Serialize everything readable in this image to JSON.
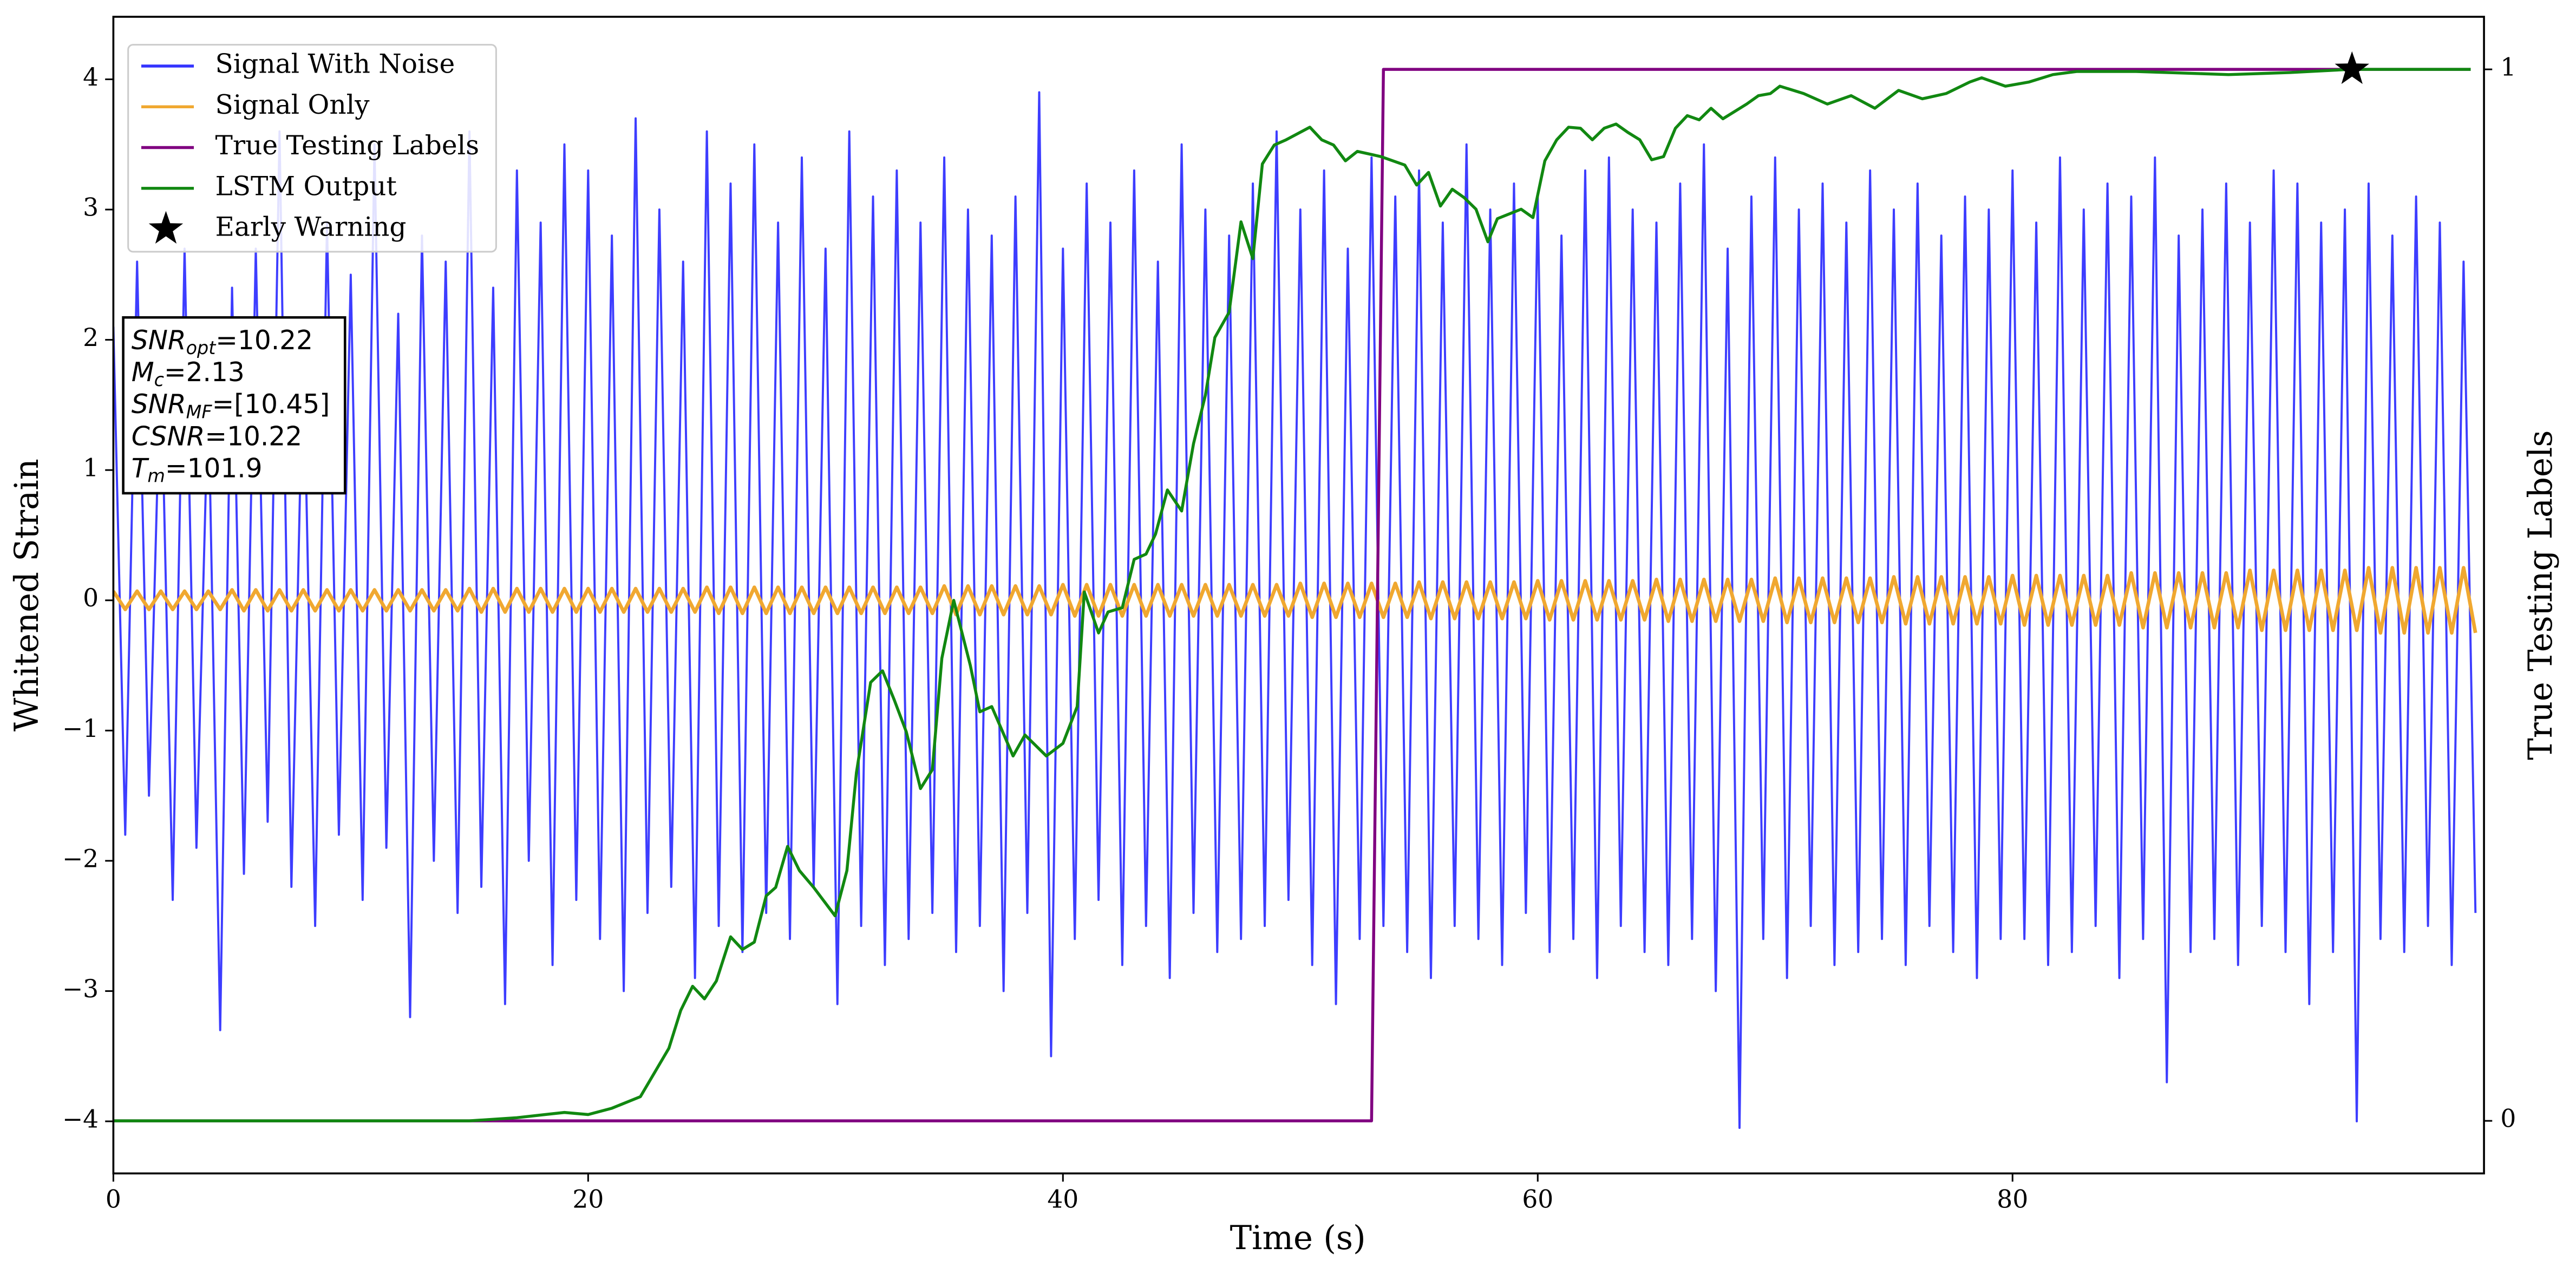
{
  "chart_data": {
    "type": "line",
    "xlabel": "Time (s)",
    "ylabel": "Whitened Strain",
    "y2label": "True Testing Labels",
    "xlim": [
      0,
      99.86
    ],
    "ylim": [
      -4.4,
      4.48
    ],
    "y2lim": [
      -0.05,
      1.05
    ],
    "xticks": [
      0,
      20,
      40,
      60,
      80
    ],
    "yticks": [
      {
        "value": -4,
        "label": "−4"
      },
      {
        "value": -3,
        "label": "−3"
      },
      {
        "value": -2,
        "label": "−2"
      },
      {
        "value": -1,
        "label": "−1"
      },
      0,
      1,
      2,
      3,
      4
    ],
    "y2ticks": [
      0,
      1
    ],
    "legend": "upper left",
    "x": [
      0,
      0.5,
      1,
      1.5,
      2,
      2.5,
      3,
      3.5,
      4,
      4.5,
      5,
      5.5,
      6,
      6.5,
      7,
      7.5,
      8,
      8.5,
      9,
      9.5,
      10,
      10.5,
      11,
      11.5,
      12,
      12.5,
      13,
      13.5,
      14,
      14.5,
      15,
      15.5,
      16,
      16.5,
      17,
      17.5,
      18,
      18.5,
      19,
      19.5,
      20,
      20.5,
      21,
      21.5,
      22,
      22.5,
      23,
      23.5,
      24,
      24.5,
      25,
      25.5,
      26,
      26.5,
      27,
      27.5,
      28,
      28.5,
      29,
      29.5,
      30,
      30.5,
      31,
      31.5,
      32,
      32.5,
      33,
      33.5,
      34,
      34.5,
      35,
      35.5,
      36,
      36.5,
      37,
      37.5,
      38,
      38.5,
      39,
      39.5,
      40,
      40.5,
      41,
      41.5,
      42,
      42.5,
      43,
      43.5,
      44,
      44.5,
      45,
      45.5,
      46,
      46.5,
      47,
      47.5,
      48,
      48.5,
      49,
      49.5,
      50,
      50.5,
      51,
      51.5,
      52,
      52.5,
      53,
      53.5,
      54,
      54.5,
      55,
      55.5,
      56,
      56.5,
      57,
      57.5,
      58,
      58.5,
      59,
      59.5,
      60,
      60.5,
      61,
      61.5,
      62,
      62.5,
      63,
      63.5,
      64,
      64.5,
      65,
      65.5,
      66,
      66.5,
      67,
      67.5,
      68,
      68.5,
      69,
      69.5,
      70,
      70.5,
      71,
      71.5,
      72,
      72.5,
      73,
      73.5,
      74,
      74.5,
      75,
      75.5,
      76,
      76.5,
      77,
      77.5,
      78,
      78.5,
      79,
      79.5,
      80,
      80.5,
      81,
      81.5,
      82,
      82.5,
      83,
      83.5,
      84,
      84.5,
      85,
      85.5,
      86,
      86.5,
      87,
      87.5,
      88,
      88.5,
      89,
      89.5,
      90,
      90.5,
      91,
      91.5,
      92,
      92.5,
      93,
      93.5,
      94,
      94.5,
      95,
      95.5,
      96,
      96.5,
      97,
      97.5,
      98,
      98.5,
      99,
      99.5
    ],
    "series": [
      {
        "name": "Signal With Noise",
        "color": "#3333ff",
        "values": [
          2.1,
          -1.8,
          2.6,
          -1.5,
          1.9,
          -2.3,
          2.7,
          -1.9,
          1.6,
          -3.3,
          2.4,
          -2.1,
          2.7,
          -1.7,
          3.6,
          -2.2,
          2.0,
          -2.5,
          2.9,
          -1.8,
          2.5,
          -2.3,
          3.5,
          -1.9,
          2.2,
          -3.2,
          2.8,
          -2.0,
          2.6,
          -2.4,
          3.6,
          -2.2,
          2.4,
          -3.1,
          3.3,
          -2.0,
          2.9,
          -2.8,
          3.5,
          -2.3,
          3.3,
          -2.6,
          2.8,
          -3.0,
          3.7,
          -2.4,
          3.0,
          -2.2,
          2.6,
          -2.9,
          3.6,
          -2.5,
          3.2,
          -2.7,
          3.5,
          -2.4,
          2.9,
          -2.6,
          3.4,
          -2.2,
          2.7,
          -3.1,
          3.6,
          -2.5,
          3.1,
          -2.8,
          3.3,
          -2.6,
          2.9,
          -2.4,
          3.4,
          -2.7,
          3.0,
          -2.5,
          2.8,
          -3.0,
          3.1,
          -2.4,
          3.9,
          -3.5,
          2.7,
          -2.6,
          3.2,
          -2.3,
          2.9,
          -2.8,
          3.3,
          -2.5,
          2.6,
          -2.9,
          3.5,
          -2.4,
          3.0,
          -2.7,
          2.8,
          -2.6,
          3.2,
          -2.5,
          3.6,
          -2.3,
          3.0,
          -2.8,
          3.3,
          -3.1,
          2.7,
          -2.6,
          3.4,
          -2.5,
          3.1,
          -2.7,
          3.3,
          -2.9,
          2.9,
          -2.5,
          3.5,
          -2.6,
          3.0,
          -2.8,
          3.2,
          -2.4,
          3.1,
          -2.7,
          2.8,
          -2.6,
          3.3,
          -2.9,
          3.4,
          -2.5,
          3.0,
          -2.7,
          2.9,
          -2.8,
          3.2,
          -2.6,
          3.5,
          -3.0,
          2.7,
          -4.05,
          3.1,
          -2.6,
          3.4,
          -2.9,
          3.0,
          -2.5,
          3.2,
          -2.8,
          2.9,
          -2.7,
          3.3,
          -2.6,
          3.0,
          -2.8,
          3.2,
          -2.5,
          2.8,
          -2.7,
          3.1,
          -2.9,
          3.0,
          -2.6,
          3.3,
          -2.6,
          2.9,
          -2.8,
          3.4,
          -2.7,
          3.0,
          -2.5,
          3.2,
          -2.9,
          3.1,
          -2.6,
          3.4,
          -3.7,
          2.8,
          -2.7,
          3.0,
          -2.6,
          3.2,
          -2.8,
          2.9,
          -2.5,
          3.3,
          -2.7,
          3.2,
          -3.1,
          2.9,
          -2.7,
          3.0,
          -4.0,
          3.2,
          -2.6,
          2.8,
          -2.7,
          3.1,
          -2.5,
          2.9,
          -2.8,
          2.6,
          -2.4
        ]
      },
      {
        "name": "Signal Only",
        "color": "#f0a830",
        "values": [
          0.07,
          -0.07,
          0.07,
          -0.07,
          0.07,
          -0.07,
          0.07,
          -0.07,
          0.07,
          -0.07,
          0.08,
          -0.08,
          0.08,
          -0.08,
          0.08,
          -0.08,
          0.08,
          -0.08,
          0.08,
          -0.08,
          0.08,
          -0.08,
          0.08,
          -0.08,
          0.08,
          -0.08,
          0.08,
          -0.08,
          0.08,
          -0.08,
          0.09,
          -0.09,
          0.09,
          -0.09,
          0.09,
          -0.09,
          0.09,
          -0.09,
          0.09,
          -0.09,
          0.09,
          -0.09,
          0.09,
          -0.09,
          0.09,
          -0.09,
          0.09,
          -0.09,
          0.09,
          -0.09,
          0.1,
          -0.1,
          0.1,
          -0.1,
          0.1,
          -0.1,
          0.1,
          -0.1,
          0.1,
          -0.1,
          0.1,
          -0.1,
          0.1,
          -0.1,
          0.1,
          -0.1,
          0.1,
          -0.1,
          0.1,
          -0.1,
          0.11,
          -0.11,
          0.11,
          -0.11,
          0.11,
          -0.11,
          0.11,
          -0.11,
          0.11,
          -0.11,
          0.12,
          -0.12,
          0.12,
          -0.12,
          0.12,
          -0.12,
          0.12,
          -0.12,
          0.12,
          -0.12,
          0.12,
          -0.12,
          0.12,
          -0.12,
          0.12,
          -0.12,
          0.12,
          -0.12,
          0.12,
          -0.12,
          0.13,
          -0.13,
          0.13,
          -0.13,
          0.13,
          -0.13,
          0.13,
          -0.13,
          0.13,
          -0.13,
          0.14,
          -0.14,
          0.14,
          -0.14,
          0.14,
          -0.14,
          0.14,
          -0.14,
          0.14,
          -0.14,
          0.15,
          -0.15,
          0.15,
          -0.15,
          0.15,
          -0.15,
          0.15,
          -0.15,
          0.15,
          -0.15,
          0.16,
          -0.16,
          0.16,
          -0.16,
          0.16,
          -0.16,
          0.16,
          -0.16,
          0.16,
          -0.16,
          0.17,
          -0.17,
          0.17,
          -0.17,
          0.17,
          -0.17,
          0.17,
          -0.17,
          0.17,
          -0.17,
          0.18,
          -0.18,
          0.18,
          -0.18,
          0.18,
          -0.18,
          0.18,
          -0.18,
          0.18,
          -0.18,
          0.19,
          -0.19,
          0.19,
          -0.19,
          0.19,
          -0.19,
          0.19,
          -0.19,
          0.19,
          -0.19,
          0.21,
          -0.21,
          0.21,
          -0.21,
          0.21,
          -0.21,
          0.21,
          -0.21,
          0.21,
          -0.21,
          0.23,
          -0.23,
          0.23,
          -0.23,
          0.23,
          -0.23,
          0.23,
          -0.23,
          0.23,
          -0.23,
          0.25,
          -0.25,
          0.25,
          -0.25,
          0.25,
          -0.25,
          0.25,
          -0.25,
          0.25,
          -0.25
        ]
      },
      {
        "name": "True Testing Labels",
        "color": "#800080",
        "axis": "y2",
        "x": [
          0,
          53,
          53.5,
          99.3
        ],
        "values": [
          0,
          0,
          1,
          1
        ]
      },
      {
        "name": "LSTM Output",
        "color": "#118811",
        "axis": "y2",
        "x": [
          0,
          15,
          17,
          19,
          20,
          21,
          22.2,
          23.4,
          23.9,
          24.4,
          24.9,
          25.4,
          26,
          26.5,
          27,
          27.5,
          27.9,
          28.4,
          28.9,
          29.5,
          30.4,
          30.9,
          31.3,
          31.9,
          32.4,
          32.9,
          33.4,
          34,
          34.5,
          34.9,
          35.4,
          36.1,
          36.5,
          37,
          37.9,
          38.4,
          39.3,
          40,
          40.6,
          40.9,
          41.5,
          41.9,
          42.5,
          43,
          43.5,
          43.9,
          44.4,
          45,
          45.5,
          46,
          46.4,
          47,
          47.5,
          48,
          48.4,
          48.9,
          49.4,
          50.4,
          50.9,
          51.4,
          51.9,
          52.4,
          53.4,
          54.4,
          54.9,
          55.4,
          55.9,
          56.4,
          56.9,
          57.4,
          57.9,
          58.3,
          59.3,
          59.8,
          60.3,
          60.8,
          61.3,
          61.8,
          62.3,
          62.8,
          63.3,
          63.8,
          64.3,
          64.8,
          65.3,
          65.8,
          66.3,
          66.8,
          67.3,
          67.8,
          68.8,
          69.3,
          69.8,
          70.2,
          71.2,
          72.2,
          73.2,
          74.2,
          75.2,
          76.2,
          77.2,
          78.2,
          78.7,
          79.7,
          80.7,
          81.7,
          82.7,
          85.2,
          89.1,
          91.7,
          94.2,
          99.3
        ],
        "values": [
          0,
          0,
          0.003,
          0.008,
          0.006,
          0.012,
          0.023,
          0.069,
          0.105,
          0.128,
          0.116,
          0.133,
          0.175,
          0.163,
          0.17,
          0.214,
          0.222,
          0.261,
          0.238,
          0.222,
          0.195,
          0.238,
          0.331,
          0.417,
          0.428,
          0.4,
          0.37,
          0.316,
          0.334,
          0.44,
          0.495,
          0.433,
          0.389,
          0.394,
          0.347,
          0.367,
          0.347,
          0.359,
          0.394,
          0.503,
          0.464,
          0.484,
          0.488,
          0.534,
          0.539,
          0.558,
          0.6,
          0.58,
          0.644,
          0.69,
          0.745,
          0.769,
          0.855,
          0.82,
          0.91,
          0.928,
          0.933,
          0.945,
          0.933,
          0.928,
          0.913,
          0.922,
          0.917,
          0.909,
          0.89,
          0.902,
          0.87,
          0.886,
          0.878,
          0.867,
          0.836,
          0.858,
          0.867,
          0.859,
          0.913,
          0.933,
          0.945,
          0.944,
          0.933,
          0.944,
          0.948,
          0.94,
          0.933,
          0.914,
          0.917,
          0.944,
          0.956,
          0.952,
          0.963,
          0.953,
          0.967,
          0.975,
          0.977,
          0.984,
          0.977,
          0.967,
          0.975,
          0.963,
          0.98,
          0.972,
          0.977,
          0.988,
          0.992,
          0.984,
          0.988,
          0.995,
          0.998,
          0.998,
          0.995,
          0.997,
          1,
          1
        ]
      },
      {
        "name": "Early Warning",
        "color": "#000000",
        "axis": "y2",
        "marker": "star",
        "x": [
          94.3
        ],
        "values": [
          1
        ]
      }
    ],
    "annotation": [
      {
        "var": "SNR",
        "sub": "opt",
        "text": "=10.22"
      },
      {
        "var": "M",
        "sub": "c",
        "text": "=2.13"
      },
      {
        "var": "SNR",
        "sub": "MF",
        "text": "=[10.45]"
      },
      {
        "var": "CSNR",
        "text": "=10.22"
      },
      {
        "var": "T",
        "sub": "m",
        "text": "=101.9"
      }
    ]
  }
}
